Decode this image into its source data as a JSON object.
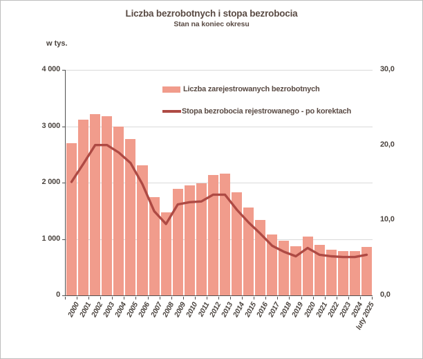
{
  "header": {
    "title": "Liczba bezrobotnych i stopa bezrobocia",
    "subtitle": "Stan na koniec okresu"
  },
  "axes": {
    "left_unit_label": "w tys.",
    "left_tick_labels": [
      "4 000",
      "3 000",
      "2 000",
      "1 000",
      "0"
    ],
    "right_tick_labels": [
      "30,0",
      "20,0",
      "10,0",
      "0,0"
    ]
  },
  "legend": {
    "items": [
      {
        "type": "bar",
        "label": "Liczba zarejestrowanych bezrobotnych"
      },
      {
        "type": "line",
        "label": "Stopa bezrobocia rejestrowanego - po korektach"
      }
    ]
  },
  "chart_data": {
    "type": "bar+line",
    "title": "Liczba bezrobotnych i stopa bezrobocia",
    "subtitle": "Stan na koniec okresu",
    "categories": [
      "2000",
      "2001",
      "2002",
      "2003",
      "2004",
      "2005",
      "2006",
      "2007",
      "2008",
      "2009",
      "2010",
      "2011",
      "2012",
      "2013",
      "2014",
      "2015",
      "2016",
      "2017",
      "2018",
      "2019",
      "2020",
      "2021",
      "2022",
      "2023",
      "2024",
      "luty 2025"
    ],
    "series": [
      {
        "name": "Liczba zarejestrowanych bezrobotnych",
        "type": "bar",
        "axis": "left",
        "unit": "tys.",
        "values": [
          2703,
          3115,
          3217,
          3176,
          3000,
          2773,
          2309,
          1747,
          1474,
          1893,
          1955,
          1983,
          2137,
          2158,
          1825,
          1563,
          1335,
          1082,
          969,
          866,
          1046,
          895,
          812,
          788,
          787,
          854
        ]
      },
      {
        "name": "Stopa bezrobocia rejestrowanego - po korektach",
        "type": "line",
        "axis": "right",
        "unit": "%",
        "values": [
          15.1,
          17.5,
          20.0,
          20.0,
          19.0,
          17.6,
          14.8,
          11.2,
          9.5,
          12.1,
          12.4,
          12.5,
          13.4,
          13.4,
          11.4,
          9.7,
          8.2,
          6.6,
          5.8,
          5.2,
          6.3,
          5.4,
          5.2,
          5.1,
          5.1,
          5.4
        ]
      }
    ],
    "left_axis": {
      "label": "w tys.",
      "min": 0,
      "max": 4000,
      "tick_step": 1000
    },
    "right_axis": {
      "min": 0,
      "max": 30,
      "tick_step": 10
    },
    "grid": "horizontal",
    "legend_position": "inside-top"
  },
  "colors": {
    "bar_fill": "#F19C8C",
    "line": "#AE4A44",
    "grid": "#D9D9D9",
    "axis": "#4F4F4F",
    "heading_text": "#594A43",
    "tick_text": "#4B443F"
  }
}
